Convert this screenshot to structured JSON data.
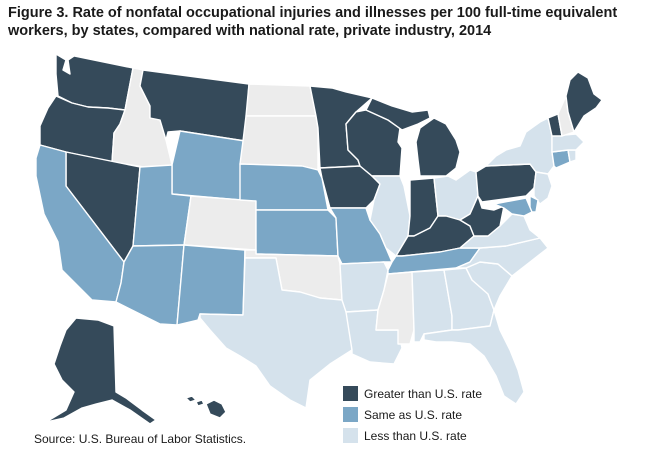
{
  "title": "Figure 3. Rate of nonfatal occupational injuries and illnesses per 100 full-time equivalent workers, by states, compared with national rate, private industry, 2014",
  "source": "Source: U.S. Bureau of Labor Statistics.",
  "colors": {
    "greater": "#354a5a",
    "same": "#7ba7c6",
    "less": "#d5e2ec",
    "no_data": "#ececec",
    "border": "#ffffff"
  },
  "legend": [
    {
      "category": "greater",
      "label": "Greater than U.S. rate"
    },
    {
      "category": "same",
      "label": "Same as U.S. rate"
    },
    {
      "category": "less",
      "label": "Less than U.S. rate"
    }
  ],
  "states": {
    "WA": "greater",
    "OR": "greater",
    "ID": "no_data",
    "MT": "greater",
    "WY": "same",
    "NV": "greater",
    "CA": "same",
    "UT": "same",
    "AZ": "same",
    "CO": "no_data",
    "NM": "same",
    "ND": "no_data",
    "SD": "no_data",
    "NE": "same",
    "KS": "same",
    "OK": "no_data",
    "TX": "less",
    "MN": "greater",
    "IA": "greater",
    "MO": "same",
    "AR": "less",
    "LA": "less",
    "WI": "greater",
    "IL": "less",
    "MI": "greater",
    "IN": "greater",
    "OH": "less",
    "KY": "greater",
    "TN": "same",
    "MS": "no_data",
    "AL": "less",
    "GA": "less",
    "FL": "less",
    "SC": "less",
    "NC": "less",
    "VA": "less",
    "WV": "greater",
    "PA": "greater",
    "NY": "less",
    "VT": "greater",
    "NH": "no_data",
    "ME": "greater",
    "MA": "less",
    "CT": "same",
    "RI": "less",
    "NJ": "less",
    "DE": "same",
    "MD": "same",
    "AK": "greater",
    "HI": "greater"
  }
}
